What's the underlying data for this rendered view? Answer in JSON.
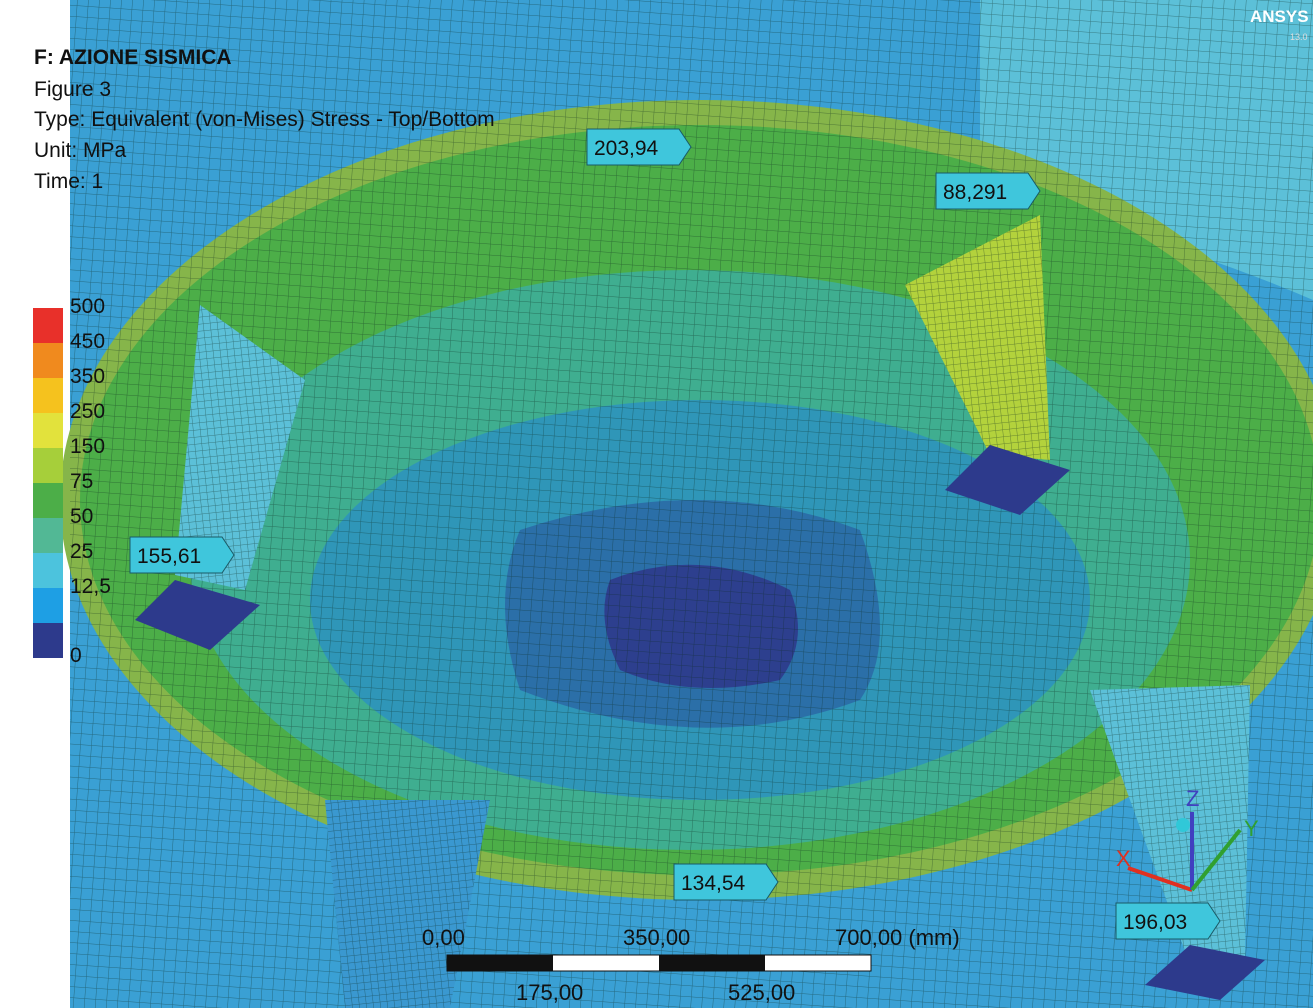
{
  "header": {
    "title": "F: AZIONE SISMICA",
    "figure": "Figure 3",
    "type": "Type: Equivalent (von-Mises) Stress - Top/Bottom",
    "unit": "Unit: MPa",
    "time": "Time: 1"
  },
  "logo": {
    "name": "ANSYS",
    "version": "13.0"
  },
  "legend": {
    "labels": [
      "500",
      "450",
      "350",
      "250",
      "150",
      "75",
      "50",
      "25",
      "12,5",
      "0"
    ],
    "colors": [
      "#e8302a",
      "#f08a1e",
      "#f5c21e",
      "#e2e23c",
      "#a6cf3a",
      "#4cae48",
      "#52b895",
      "#4cc3dd",
      "#1e9fe4",
      "#2d3a8c"
    ]
  },
  "probes": [
    "203,94",
    "88,291",
    "155,61",
    "134,54",
    "196,03"
  ],
  "scale_bar": {
    "top": [
      "0,00",
      "350,00",
      "700,00 (mm)"
    ],
    "bottom": [
      "175,00",
      "525,00"
    ]
  },
  "triad": [
    "X",
    "Y",
    "Z"
  ]
}
